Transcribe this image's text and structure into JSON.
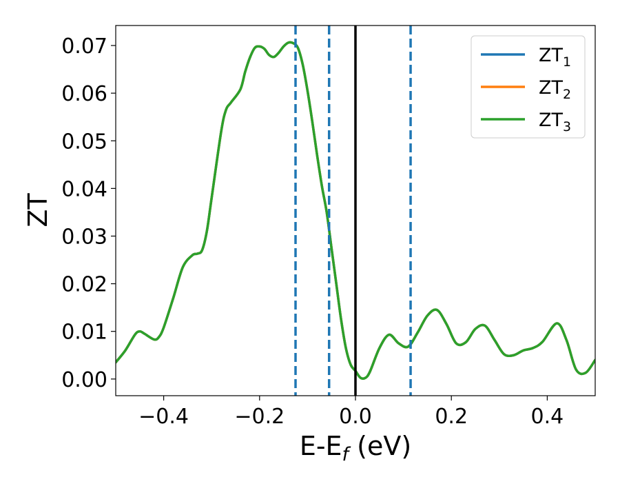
{
  "chart_data": {
    "type": "line",
    "xlabel": "E-E",
    "xlabel_subscript": "f",
    "xlabel_unit": " (eV)",
    "ylabel": "ZT",
    "xlim": [
      -0.5,
      0.5
    ],
    "ylim": [
      -0.0035,
      0.0742
    ],
    "x_ticks": [
      -0.4,
      -0.2,
      0.0,
      0.2,
      0.4
    ],
    "x_tick_labels": [
      "−0.4",
      "−0.2",
      "0.0",
      "0.2",
      "0.4"
    ],
    "y_ticks": [
      0.0,
      0.01,
      0.02,
      0.03,
      0.04,
      0.05,
      0.06,
      0.07
    ],
    "y_tick_labels": [
      "0.00",
      "0.01",
      "0.02",
      "0.03",
      "0.04",
      "0.05",
      "0.06",
      "0.07"
    ],
    "grid": false,
    "legend_position": "top-right",
    "vertical_lines": [
      {
        "x": -0.125,
        "style": "dashed",
        "color": "#1f77b4"
      },
      {
        "x": -0.055,
        "style": "dashed",
        "color": "#1f77b4"
      },
      {
        "x": 0.115,
        "style": "dashed",
        "color": "#1f77b4"
      },
      {
        "x": 0.0,
        "style": "solid",
        "color": "#000000"
      }
    ],
    "x": [
      -0.5,
      -0.48,
      -0.46,
      -0.45,
      -0.44,
      -0.42,
      -0.41,
      -0.4,
      -0.38,
      -0.36,
      -0.34,
      -0.33,
      -0.32,
      -0.31,
      -0.3,
      -0.28,
      -0.27,
      -0.26,
      -0.24,
      -0.23,
      -0.22,
      -0.21,
      -0.2,
      -0.19,
      -0.18,
      -0.17,
      -0.16,
      -0.15,
      -0.14,
      -0.13,
      -0.12,
      -0.11,
      -0.1,
      -0.09,
      -0.08,
      -0.07,
      -0.06,
      -0.05,
      -0.04,
      -0.03,
      -0.02,
      -0.01,
      0.0,
      0.01,
      0.02,
      0.03,
      0.05,
      0.07,
      0.09,
      0.11,
      0.13,
      0.15,
      0.17,
      0.19,
      0.21,
      0.23,
      0.25,
      0.27,
      0.29,
      0.31,
      0.33,
      0.35,
      0.37,
      0.39,
      0.42,
      0.44,
      0.46,
      0.48,
      0.5
    ],
    "series": [
      {
        "name": "ZT",
        "name_subscript": "1",
        "color": "#1f77b4",
        "values": [
          0.0035,
          0.006,
          0.0093,
          0.01,
          0.0095,
          0.0083,
          0.0088,
          0.0108,
          0.017,
          0.0235,
          0.026,
          0.0263,
          0.027,
          0.031,
          0.038,
          0.052,
          0.0565,
          0.058,
          0.0608,
          0.0645,
          0.0675,
          0.0695,
          0.0698,
          0.0693,
          0.068,
          0.0676,
          0.0685,
          0.0698,
          0.0706,
          0.0705,
          0.0695,
          0.066,
          0.0605,
          0.054,
          0.047,
          0.0405,
          0.035,
          0.0275,
          0.02,
          0.0125,
          0.0065,
          0.003,
          0.0017,
          0.0003,
          0.0002,
          0.0015,
          0.0065,
          0.0093,
          0.0075,
          0.0068,
          0.0098,
          0.0133,
          0.0145,
          0.0115,
          0.0075,
          0.0077,
          0.0105,
          0.0112,
          0.0082,
          0.0052,
          0.005,
          0.006,
          0.0065,
          0.0078,
          0.0117,
          0.0082,
          0.002,
          0.0013,
          0.004
        ]
      },
      {
        "name": "ZT",
        "name_subscript": "2",
        "color": "#ff7f0e",
        "values": [
          0.0035,
          0.006,
          0.0093,
          0.01,
          0.0095,
          0.0083,
          0.0088,
          0.0108,
          0.017,
          0.0235,
          0.026,
          0.0263,
          0.027,
          0.031,
          0.038,
          0.052,
          0.0565,
          0.058,
          0.0608,
          0.0645,
          0.0675,
          0.0695,
          0.0698,
          0.0693,
          0.068,
          0.0676,
          0.0685,
          0.0698,
          0.0706,
          0.0705,
          0.0695,
          0.066,
          0.0605,
          0.054,
          0.047,
          0.0405,
          0.035,
          0.0275,
          0.02,
          0.0125,
          0.0065,
          0.003,
          0.0017,
          0.0003,
          0.0002,
          0.0015,
          0.0065,
          0.0093,
          0.0075,
          0.0068,
          0.0098,
          0.0133,
          0.0145,
          0.0115,
          0.0075,
          0.0077,
          0.0105,
          0.0112,
          0.0082,
          0.0052,
          0.005,
          0.006,
          0.0065,
          0.0078,
          0.0117,
          0.0082,
          0.002,
          0.0013,
          0.004
        ]
      },
      {
        "name": "ZT",
        "name_subscript": "3",
        "color": "#2ca02c",
        "values": [
          0.0035,
          0.006,
          0.0093,
          0.01,
          0.0095,
          0.0083,
          0.0088,
          0.0108,
          0.017,
          0.0235,
          0.026,
          0.0263,
          0.027,
          0.031,
          0.038,
          0.052,
          0.0565,
          0.058,
          0.0608,
          0.0645,
          0.0675,
          0.0695,
          0.0698,
          0.0693,
          0.068,
          0.0676,
          0.0685,
          0.0698,
          0.0706,
          0.0705,
          0.0695,
          0.066,
          0.0605,
          0.054,
          0.047,
          0.0405,
          0.035,
          0.0275,
          0.02,
          0.0125,
          0.0065,
          0.003,
          0.0017,
          0.0003,
          0.0002,
          0.0015,
          0.0065,
          0.0093,
          0.0075,
          0.0068,
          0.0098,
          0.0133,
          0.0145,
          0.0115,
          0.0075,
          0.0077,
          0.0105,
          0.0112,
          0.0082,
          0.0052,
          0.005,
          0.006,
          0.0065,
          0.0078,
          0.0117,
          0.0082,
          0.002,
          0.0013,
          0.004
        ]
      }
    ]
  }
}
